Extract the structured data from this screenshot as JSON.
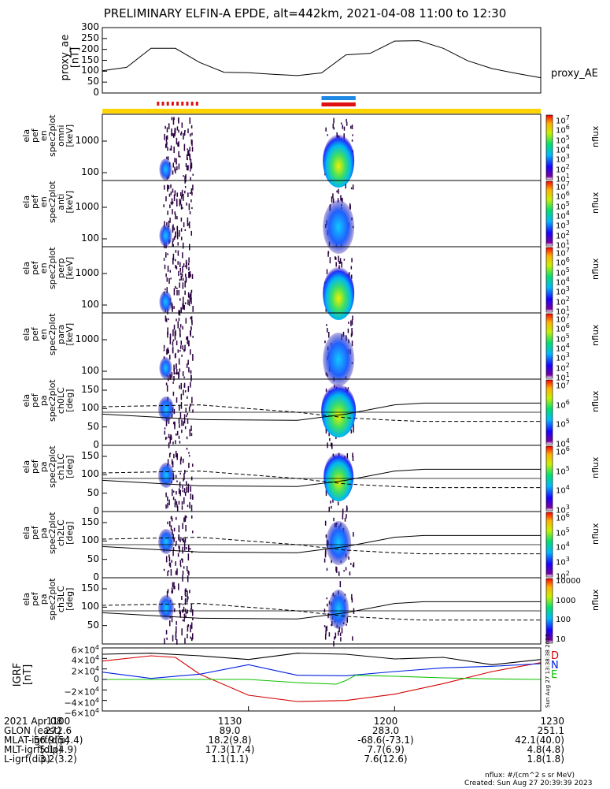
{
  "title": "PRELIMINARY ELFIN-A EPDE, alt=442km, 2021-04-08 11:00 to 12:30",
  "proxy_ae": {
    "ylabel": "proxy_ae [nT]",
    "yticks": [
      "300",
      "250",
      "200",
      "150",
      "100",
      "50",
      "0"
    ],
    "ylim": [
      0,
      300
    ],
    "right_label": "proxy_AE",
    "t_min": [
      0,
      5,
      10,
      15,
      20,
      25,
      30,
      35,
      40,
      45,
      50,
      55,
      60,
      65,
      70,
      75,
      80,
      85,
      90
    ],
    "values": [
      102,
      118,
      205,
      205,
      140,
      95,
      93,
      86,
      80,
      92,
      175,
      182,
      238,
      240,
      205,
      148,
      112,
      90,
      70
    ]
  },
  "spec_panels": [
    {
      "ylabel": [
        "ela",
        "pef",
        "en",
        "spec2plot",
        "omni",
        "[keV]"
      ],
      "yticks": [
        "1000",
        "100"
      ],
      "cb_ticks": [
        "10^7",
        "10^6",
        "10^5",
        "10^4",
        "10^3",
        "10^2",
        "10^1"
      ],
      "cb_label": "nflux"
    },
    {
      "ylabel": [
        "ela",
        "pef",
        "en",
        "spec2plot",
        "anti",
        "[keV]"
      ],
      "yticks": [
        "1000",
        "100"
      ],
      "cb_ticks": [
        "10^7",
        "10^6",
        "10^5",
        "10^4",
        "10^3",
        "10^2",
        "10^1"
      ],
      "cb_label": "nflux"
    },
    {
      "ylabel": [
        "ela",
        "pef",
        "en",
        "spec2plot",
        "perp",
        "[keV]"
      ],
      "yticks": [
        "1000",
        "100"
      ],
      "cb_ticks": [
        "10^7",
        "10^6",
        "10^5",
        "10^4",
        "10^3",
        "10^2",
        "10^1"
      ],
      "cb_label": "nflux"
    },
    {
      "ylabel": [
        "ela",
        "pef",
        "en",
        "spec2plot",
        "para",
        "[keV]"
      ],
      "yticks": [
        "1000",
        "100"
      ],
      "cb_ticks": [
        "10^7",
        "10^6",
        "10^5",
        "10^4",
        "10^3",
        "10^2",
        "10^1"
      ],
      "cb_label": "nflux"
    }
  ],
  "pa_panels": [
    {
      "ylabel": [
        "ela",
        "pef",
        "pa",
        "spec2plot",
        "ch0LC",
        "[deg]"
      ],
      "yticks": [
        "150",
        "100",
        "50",
        "0"
      ],
      "cb_ticks": [
        "10^7",
        "10^6",
        "10^5",
        "10^4"
      ],
      "cb_label": "nflux"
    },
    {
      "ylabel": [
        "ela",
        "pef",
        "pa",
        "spec2plot",
        "ch1LC",
        "[deg]"
      ],
      "yticks": [
        "150",
        "100",
        "50",
        "0"
      ],
      "cb_ticks": [
        "10^6",
        "10^5",
        "10^4",
        "10^3"
      ],
      "cb_label": "nflux"
    },
    {
      "ylabel": [
        "ela",
        "pef",
        "pa",
        "spec2plot",
        "ch2LC",
        "[deg]"
      ],
      "yticks": [
        "150",
        "100",
        "50",
        "0"
      ],
      "cb_ticks": [
        "10^6",
        "10^5",
        "10^4",
        "10^3",
        "10^2"
      ],
      "cb_label": "nflux"
    },
    {
      "ylabel": [
        "ela",
        "pef",
        "pa",
        "spec2plot",
        "ch3LC",
        "[deg]"
      ],
      "yticks": [
        "150",
        "100",
        "50"
      ],
      "cb_ticks": [
        "10000",
        "1000",
        "100",
        "10"
      ],
      "cb_label": "nflux"
    }
  ],
  "igrf": {
    "ylabel": "IGRF [nT]",
    "yticks": [
      "6×10^4",
      "4×10^4",
      "2×10^4",
      "0",
      "−2×10^4",
      "−4×10^4",
      "−6×10^4"
    ],
    "ylim": [
      -60000,
      60000
    ],
    "series": [
      {
        "name": "D",
        "color": "#d40000",
        "t_min": [
          0,
          10,
          15,
          20,
          30,
          40,
          50,
          60,
          70,
          80,
          90
        ],
        "values": [
          35000,
          45000,
          42000,
          10000,
          -30000,
          -42000,
          -40000,
          -28000,
          -8000,
          15000,
          32000
        ]
      },
      {
        "name": "N",
        "color": "#0020e0",
        "t_min": [
          0,
          10,
          20,
          30,
          40,
          50,
          60,
          70,
          80,
          90
        ],
        "values": [
          14000,
          2000,
          10000,
          28000,
          8000,
          7000,
          15000,
          22000,
          25000,
          30000
        ]
      },
      {
        "name": "E",
        "color": "#10c000",
        "t_min": [
          0,
          20,
          30,
          40,
          48,
          50,
          52,
          60,
          70,
          80,
          90
        ],
        "values": [
          0,
          0,
          0,
          -6000,
          -9000,
          -2000,
          8000,
          6000,
          3000,
          1000,
          0
        ]
      },
      {
        "name": "total",
        "color": "#000000",
        "t_min": [
          0,
          10,
          20,
          30,
          40,
          50,
          60,
          70,
          80,
          90
        ],
        "values": [
          48000,
          50000,
          45000,
          38000,
          50000,
          48000,
          39000,
          42000,
          28000,
          38000
        ]
      }
    ],
    "side_stamp": "Sun Aug 27 13:38:38 2023"
  },
  "flags": {
    "yellow_bar": "#ffd400",
    "red_marks_min": [
      11.2,
      13.5
    ],
    "blue_bar_min": [
      45,
      52
    ],
    "red_bar_min": [
      45,
      52
    ],
    "blue": "#1e88e5",
    "red": "#e01010"
  },
  "events_min": [
    {
      "start": 12.5,
      "end": 18.5
    },
    {
      "start": 46,
      "end": 51
    }
  ],
  "time_axis": {
    "labels": [
      "1100",
      "1130",
      "1200",
      "1230"
    ],
    "minutes": [
      0,
      30,
      60,
      90
    ]
  },
  "footer": {
    "rows": [
      {
        "label": "2021 Apr 08",
        "values": [
          "1100",
          "1130",
          "1200",
          "1230"
        ]
      },
      {
        "label": "GLON (east)",
        "values": [
          "272.6",
          "89.0",
          "283.0",
          "251.1"
        ]
      },
      {
        "label": "MLAT-igrf(dip)",
        "values": [
          "56.9(54.4)",
          "18.2(9.8)",
          "-68.6(-73.1)",
          "42.1(40.0)"
        ]
      },
      {
        "label": "MLT-igrf(dip)",
        "values": [
          "5.1(4.9)",
          "17.3(17.4)",
          "7.7(6.9)",
          "4.8(4.8)"
        ]
      },
      {
        "label": "L-igrf(dip)",
        "values": [
          "3.2(3.2)",
          "1.1(1.1)",
          "7.6(12.6)",
          "1.8(1.8)"
        ]
      }
    ],
    "units_note": "nflux: #/(cm^2 s sr MeV)",
    "created": "Created: Sun Aug 27 20:39:39 2023"
  }
}
